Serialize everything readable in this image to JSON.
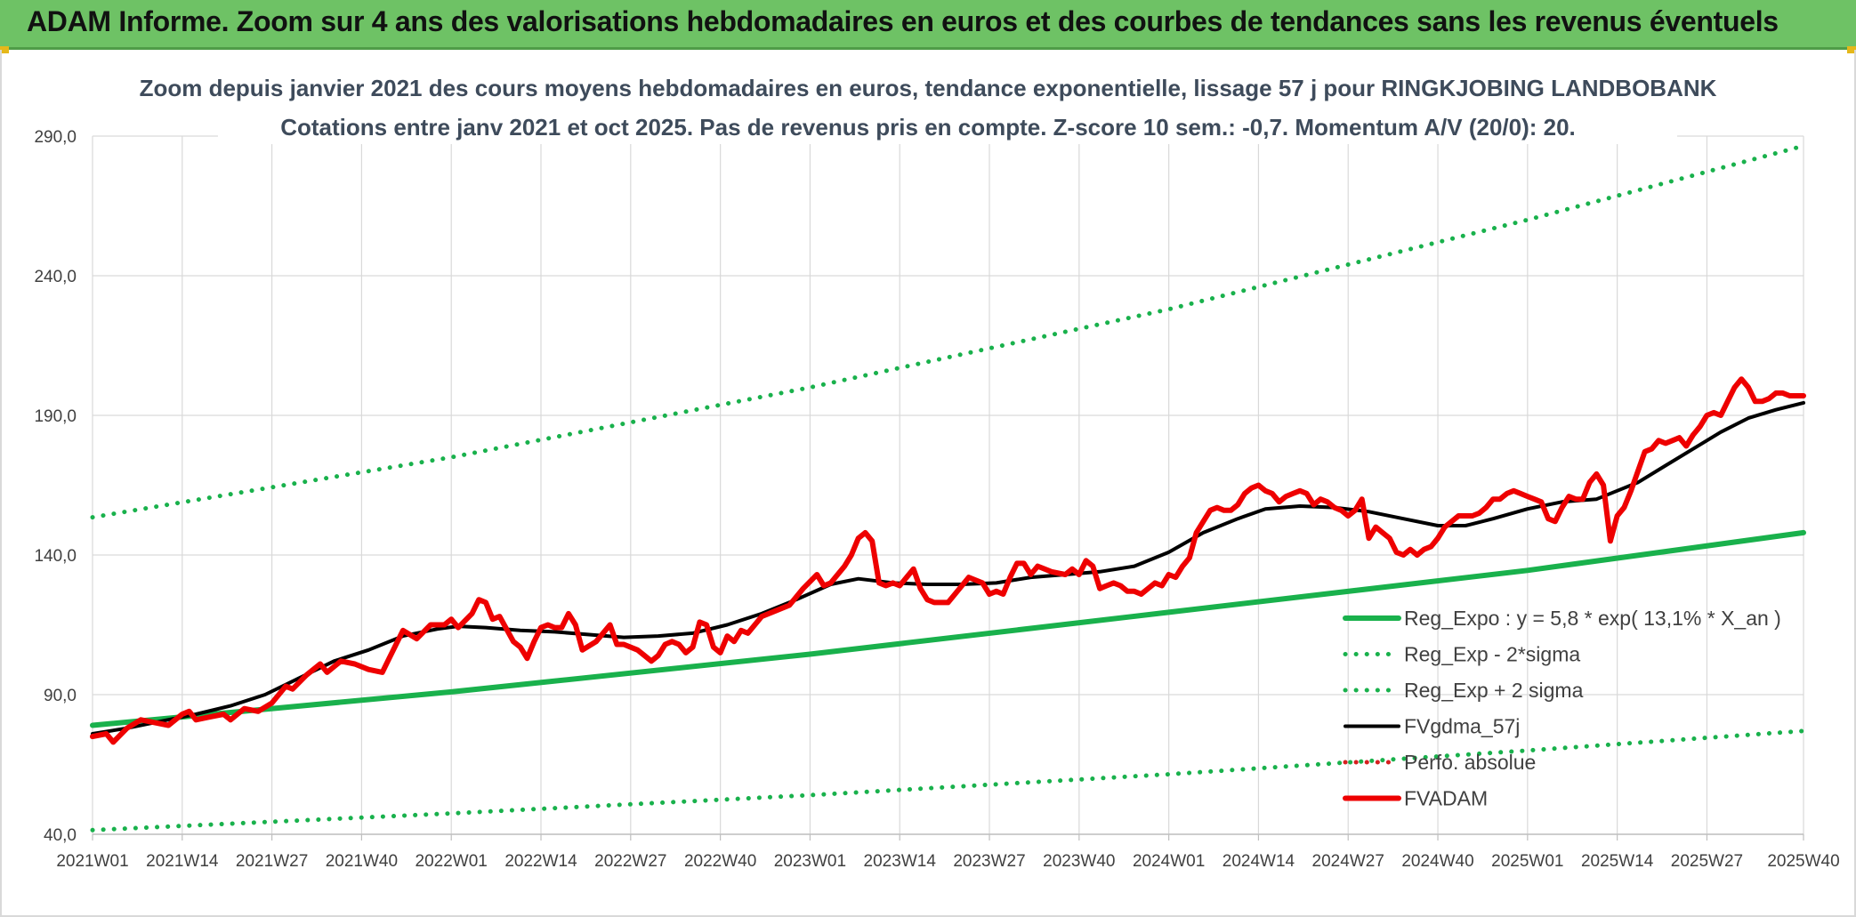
{
  "header": {
    "title": "ADAM Informe. Zoom sur 4 ans des valorisations hebdomadaires en euros et des courbes de tendances sans les revenus éventuels"
  },
  "colors": {
    "header_bg": "#6ec265",
    "reg_expo": "#19b14c",
    "fvgdma": "#000000",
    "perfo": "#d62020",
    "fvadam": "#ee0000",
    "grid": "#d9d9d9"
  },
  "chart_data": {
    "type": "line",
    "title_line1": "Zoom depuis janvier 2021 des cours moyens hebdomadaires en euros, tendance exponentielle, lissage 57 j pour RINGKJOBING LANDBOBANK",
    "title_line2": "Cotations entre janv 2021 et oct 2025. Pas de revenus pris en compte. Z-score 10 sem.: -0,7. Momentum A/V (20/0): 20.",
    "xlabel": "",
    "ylabel": "",
    "ylim": [
      40,
      290
    ],
    "yticks": [
      "40,0",
      "90,0",
      "140,0",
      "190,0",
      "240,0",
      "290,0"
    ],
    "ytick_values": [
      40,
      90,
      140,
      190,
      240,
      290
    ],
    "grid": true,
    "n_weeks": 249,
    "x_ticks": [
      {
        "week": 0,
        "label": "2021W01"
      },
      {
        "week": 13,
        "label": "2021W14"
      },
      {
        "week": 26,
        "label": "2021W27"
      },
      {
        "week": 39,
        "label": "2021W40"
      },
      {
        "week": 52,
        "label": "2022W01"
      },
      {
        "week": 65,
        "label": "2022W14"
      },
      {
        "week": 78,
        "label": "2022W27"
      },
      {
        "week": 91,
        "label": "2022W40"
      },
      {
        "week": 104,
        "label": "2023W01"
      },
      {
        "week": 117,
        "label": "2023W14"
      },
      {
        "week": 130,
        "label": "2023W27"
      },
      {
        "week": 143,
        "label": "2023W40"
      },
      {
        "week": 156,
        "label": "2024W01"
      },
      {
        "week": 169,
        "label": "2024W14"
      },
      {
        "week": 182,
        "label": "2024W27"
      },
      {
        "week": 195,
        "label": "2024W40"
      },
      {
        "week": 208,
        "label": "2025W01"
      },
      {
        "week": 221,
        "label": "2025W14"
      },
      {
        "week": 234,
        "label": "2025W27"
      },
      {
        "week": 248,
        "label": "2025W40"
      }
    ],
    "legend_position": "right",
    "series": [
      {
        "name": "Reg_Expo : y = 5,8 * exp( 13,1% *  X_an )",
        "style": "solid-thick",
        "color": "#19b14c",
        "points": [
          [
            0,
            79
          ],
          [
            52,
            91
          ],
          [
            104,
            104.5
          ],
          [
            156,
            119.5
          ],
          [
            208,
            134.5
          ],
          [
            248,
            148
          ]
        ]
      },
      {
        "name": "Reg_Exp - 2*sigma",
        "style": "dotted",
        "color": "#19b14c",
        "points": [
          [
            0,
            41.5
          ],
          [
            52,
            47.5
          ],
          [
            104,
            54
          ],
          [
            156,
            61.5
          ],
          [
            208,
            70
          ],
          [
            248,
            77
          ]
        ]
      },
      {
        "name": "Reg_Exp + 2 sigma",
        "style": "dotted",
        "color": "#19b14c",
        "points": [
          [
            0,
            153.5
          ],
          [
            52,
            175
          ],
          [
            104,
            200
          ],
          [
            156,
            228
          ],
          [
            208,
            260
          ],
          [
            248,
            286.5
          ]
        ]
      },
      {
        "name": "FVgdma_57j",
        "style": "solid",
        "color": "#000000",
        "points": [
          [
            0,
            76
          ],
          [
            5,
            78
          ],
          [
            10,
            80.5
          ],
          [
            15,
            83
          ],
          [
            20,
            86
          ],
          [
            25,
            90
          ],
          [
            30,
            96
          ],
          [
            35,
            102
          ],
          [
            40,
            106
          ],
          [
            45,
            111
          ],
          [
            50,
            113.5
          ],
          [
            53,
            114.5
          ],
          [
            57,
            114
          ],
          [
            62,
            113
          ],
          [
            67,
            112.5
          ],
          [
            72,
            111.5
          ],
          [
            77,
            110.5
          ],
          [
            82,
            111
          ],
          [
            87,
            112
          ],
          [
            92,
            115
          ],
          [
            97,
            119
          ],
          [
            102,
            124
          ],
          [
            107,
            129.5
          ],
          [
            111,
            131.5
          ],
          [
            116,
            130
          ],
          [
            121,
            129.5
          ],
          [
            126,
            129.5
          ],
          [
            131,
            130
          ],
          [
            136,
            132
          ],
          [
            141,
            133
          ],
          [
            146,
            134
          ],
          [
            151,
            136
          ],
          [
            156,
            141
          ],
          [
            161,
            148
          ],
          [
            166,
            153
          ],
          [
            170,
            156.5
          ],
          [
            175,
            157.5
          ],
          [
            180,
            157
          ],
          [
            185,
            155.5
          ],
          [
            190,
            153
          ],
          [
            195,
            150.5
          ],
          [
            199,
            150.5
          ],
          [
            203,
            153
          ],
          [
            208,
            156.5
          ],
          [
            213,
            159
          ],
          [
            218,
            160
          ],
          [
            221,
            163
          ],
          [
            224,
            166
          ],
          [
            228,
            172
          ],
          [
            232,
            178
          ],
          [
            236,
            184
          ],
          [
            240,
            189
          ],
          [
            244,
            192
          ],
          [
            248,
            194.5
          ]
        ]
      },
      {
        "name": "Perfo. absolue",
        "style": "dotted",
        "color": "#d62020",
        "points": []
      },
      {
        "name": "FVADAM",
        "style": "solid-thick",
        "color": "#ee0000",
        "points": [
          [
            0,
            75
          ],
          [
            2,
            76
          ],
          [
            3,
            73
          ],
          [
            5,
            78
          ],
          [
            7,
            81
          ],
          [
            9,
            80
          ],
          [
            11,
            79
          ],
          [
            13,
            83
          ],
          [
            14,
            84
          ],
          [
            15,
            81
          ],
          [
            17,
            82
          ],
          [
            19,
            83
          ],
          [
            20,
            81
          ],
          [
            22,
            85
          ],
          [
            24,
            84
          ],
          [
            26,
            87
          ],
          [
            28,
            93
          ],
          [
            29,
            92
          ],
          [
            31,
            97
          ],
          [
            33,
            101
          ],
          [
            34,
            98
          ],
          [
            36,
            102
          ],
          [
            38,
            101
          ],
          [
            40,
            99
          ],
          [
            42,
            98
          ],
          [
            43,
            103
          ],
          [
            45,
            113
          ],
          [
            47,
            110
          ],
          [
            49,
            115
          ],
          [
            51,
            115
          ],
          [
            52,
            117
          ],
          [
            53,
            114
          ],
          [
            55,
            119
          ],
          [
            56,
            124
          ],
          [
            57,
            123
          ],
          [
            58,
            117
          ],
          [
            59,
            118
          ],
          [
            61,
            109
          ],
          [
            62,
            107
          ],
          [
            63,
            103
          ],
          [
            64,
            109
          ],
          [
            65,
            114
          ],
          [
            66,
            115
          ],
          [
            67,
            114
          ],
          [
            68,
            114
          ],
          [
            69,
            119
          ],
          [
            70,
            115
          ],
          [
            71,
            106
          ],
          [
            73,
            109
          ],
          [
            75,
            115
          ],
          [
            76,
            108
          ],
          [
            77,
            108
          ],
          [
            79,
            106
          ],
          [
            80,
            104
          ],
          [
            81,
            102
          ],
          [
            82,
            104
          ],
          [
            83,
            108
          ],
          [
            84,
            109
          ],
          [
            85,
            108
          ],
          [
            86,
            105
          ],
          [
            87,
            107
          ],
          [
            88,
            116
          ],
          [
            89,
            115
          ],
          [
            90,
            107
          ],
          [
            91,
            105
          ],
          [
            92,
            111
          ],
          [
            93,
            109
          ],
          [
            94,
            113
          ],
          [
            95,
            112
          ],
          [
            97,
            118
          ],
          [
            99,
            120
          ],
          [
            101,
            122
          ],
          [
            103,
            128
          ],
          [
            105,
            133
          ],
          [
            106,
            129
          ],
          [
            107,
            130
          ],
          [
            109,
            136
          ],
          [
            110,
            140
          ],
          [
            111,
            146
          ],
          [
            112,
            148
          ],
          [
            113,
            145
          ],
          [
            114,
            130
          ],
          [
            115,
            129
          ],
          [
            116,
            130
          ],
          [
            117,
            129
          ],
          [
            118,
            132
          ],
          [
            119,
            135
          ],
          [
            120,
            128
          ],
          [
            121,
            124
          ],
          [
            122,
            123
          ],
          [
            123,
            123
          ],
          [
            124,
            123
          ],
          [
            125,
            126
          ],
          [
            127,
            132
          ],
          [
            129,
            130
          ],
          [
            130,
            126
          ],
          [
            131,
            127
          ],
          [
            132,
            126
          ],
          [
            133,
            132
          ],
          [
            134,
            137
          ],
          [
            135,
            137
          ],
          [
            136,
            133
          ],
          [
            137,
            136
          ],
          [
            139,
            134
          ],
          [
            141,
            133
          ],
          [
            142,
            135
          ],
          [
            143,
            133
          ],
          [
            144,
            138
          ],
          [
            145,
            136
          ],
          [
            146,
            128
          ],
          [
            147,
            129
          ],
          [
            148,
            130
          ],
          [
            149,
            129
          ],
          [
            150,
            127
          ],
          [
            151,
            127
          ],
          [
            152,
            126
          ],
          [
            153,
            128
          ],
          [
            154,
            130
          ],
          [
            155,
            129
          ],
          [
            156,
            133
          ],
          [
            157,
            132
          ],
          [
            158,
            136
          ],
          [
            159,
            139
          ],
          [
            160,
            148
          ],
          [
            161,
            152
          ],
          [
            162,
            156
          ],
          [
            163,
            157
          ],
          [
            164,
            156
          ],
          [
            165,
            156
          ],
          [
            166,
            158
          ],
          [
            167,
            162
          ],
          [
            168,
            164
          ],
          [
            169,
            165
          ],
          [
            170,
            163
          ],
          [
            171,
            162
          ],
          [
            172,
            159
          ],
          [
            173,
            161
          ],
          [
            174,
            162
          ],
          [
            175,
            163
          ],
          [
            176,
            162
          ],
          [
            177,
            158
          ],
          [
            178,
            160
          ],
          [
            179,
            159
          ],
          [
            180,
            157
          ],
          [
            181,
            156
          ],
          [
            182,
            154
          ],
          [
            183,
            156
          ],
          [
            184,
            160
          ],
          [
            185,
            146
          ],
          [
            186,
            150
          ],
          [
            187,
            148
          ],
          [
            188,
            146
          ],
          [
            189,
            141
          ],
          [
            190,
            140
          ],
          [
            191,
            142
          ],
          [
            192,
            140
          ],
          [
            193,
            142
          ],
          [
            194,
            143
          ],
          [
            195,
            146
          ],
          [
            196,
            150
          ],
          [
            197,
            152
          ],
          [
            198,
            154
          ],
          [
            199,
            154
          ],
          [
            200,
            154
          ],
          [
            201,
            155
          ],
          [
            202,
            157
          ],
          [
            203,
            160
          ],
          [
            204,
            160
          ],
          [
            205,
            162
          ],
          [
            206,
            163
          ],
          [
            207,
            162
          ],
          [
            208,
            161
          ],
          [
            209,
            160
          ],
          [
            210,
            159
          ],
          [
            211,
            153
          ],
          [
            212,
            152
          ],
          [
            213,
            157
          ],
          [
            214,
            161
          ],
          [
            215,
            160
          ],
          [
            216,
            160
          ],
          [
            217,
            166
          ],
          [
            218,
            169
          ],
          [
            219,
            165
          ],
          [
            220,
            145
          ],
          [
            221,
            154
          ],
          [
            222,
            157
          ],
          [
            223,
            163
          ],
          [
            224,
            170
          ],
          [
            225,
            177
          ],
          [
            226,
            178
          ],
          [
            227,
            181
          ],
          [
            228,
            180
          ],
          [
            229,
            181
          ],
          [
            230,
            182
          ],
          [
            231,
            179
          ],
          [
            232,
            183
          ],
          [
            233,
            186
          ],
          [
            234,
            190
          ],
          [
            235,
            191
          ],
          [
            236,
            190
          ],
          [
            237,
            195
          ],
          [
            238,
            200
          ],
          [
            239,
            203
          ],
          [
            240,
            200
          ],
          [
            241,
            195
          ],
          [
            242,
            195
          ],
          [
            243,
            196
          ],
          [
            244,
            198
          ],
          [
            245,
            198
          ],
          [
            246,
            197
          ],
          [
            248,
            197
          ]
        ]
      }
    ]
  }
}
